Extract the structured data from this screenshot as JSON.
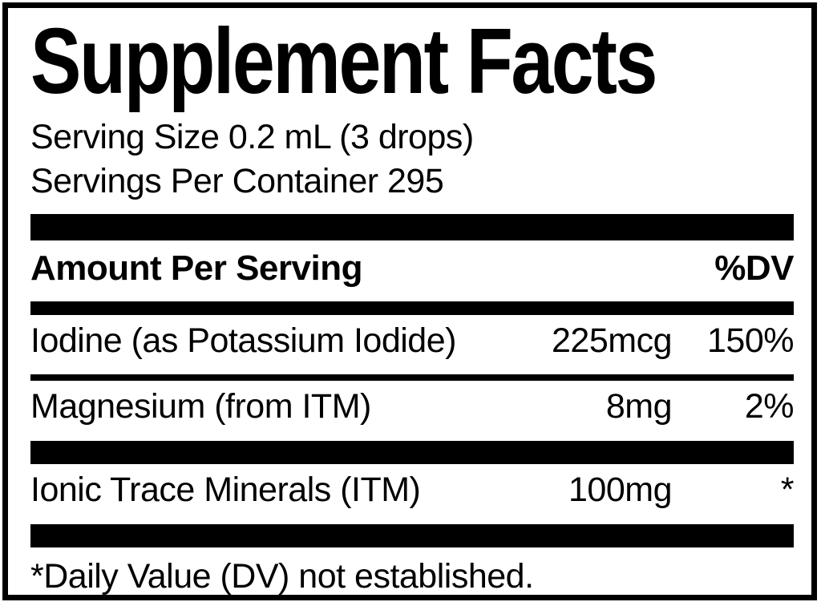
{
  "panel": {
    "title": "Supplement Facts",
    "serving": {
      "size": "Serving Size 0.2 mL (3 drops)",
      "per_container": "Servings Per Container 295"
    },
    "headers": {
      "amount": "Amount Per Serving",
      "dv": "%DV"
    },
    "rows": [
      {
        "name": "Iodine (as Potassium Iodide)",
        "amount": "225mcg",
        "dv": "150%"
      },
      {
        "name": "Magnesium (from ITM)",
        "amount": "8mg",
        "dv": "2%"
      },
      {
        "name": "Ionic Trace Minerals (ITM)",
        "amount": "100mg",
        "dv": "*"
      }
    ],
    "footnote": "*Daily Value (DV) not established.",
    "colors": {
      "ink": "#000000",
      "background": "#ffffff"
    }
  }
}
